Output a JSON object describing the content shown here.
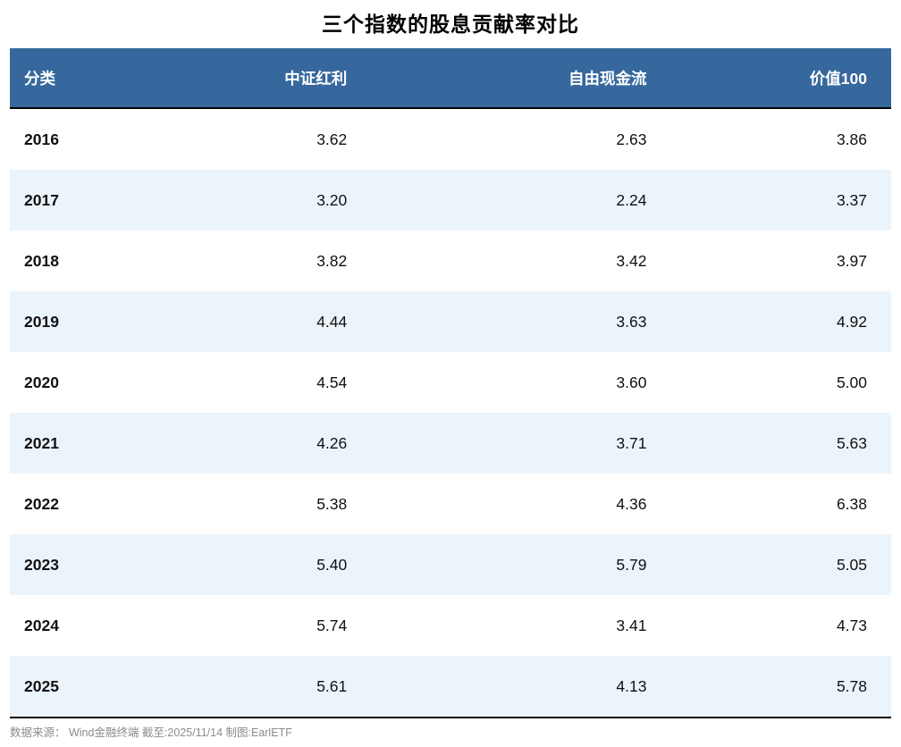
{
  "title": "三个指数的股息贡献率对比",
  "table": {
    "columns": [
      "分类",
      "中证红利",
      "自由现金流",
      "价值100"
    ],
    "rows": [
      {
        "year": "2016",
        "values": [
          "3.62",
          "2.63",
          "3.86"
        ]
      },
      {
        "year": "2017",
        "values": [
          "3.20",
          "2.24",
          "3.37"
        ]
      },
      {
        "year": "2018",
        "values": [
          "3.82",
          "3.42",
          "3.97"
        ]
      },
      {
        "year": "2019",
        "values": [
          "4.44",
          "3.63",
          "4.92"
        ]
      },
      {
        "year": "2020",
        "values": [
          "4.54",
          "3.60",
          "5.00"
        ]
      },
      {
        "year": "2021",
        "values": [
          "4.26",
          "3.71",
          "5.63"
        ]
      },
      {
        "year": "2022",
        "values": [
          "5.38",
          "4.36",
          "6.38"
        ]
      },
      {
        "year": "2023",
        "values": [
          "5.40",
          "5.79",
          "5.05"
        ]
      },
      {
        "year": "2024",
        "values": [
          "5.74",
          "3.41",
          "4.73"
        ]
      },
      {
        "year": "2025",
        "values": [
          "5.61",
          "4.13",
          "5.78"
        ]
      }
    ]
  },
  "footer": {
    "source": "数据来源：  Wind金融终端 截至:2025/11/14 制图:EarlETF"
  },
  "colors": {
    "header_bg": "#36689D",
    "header_text": "#FFFFFF",
    "row_alt_bg": "#ECF4FB",
    "row_bg": "#FFFFFF",
    "rule": "#000000",
    "footer_text": "#8C8C8C"
  },
  "chart_data": {
    "type": "table",
    "title": "三个指数的股息贡献率对比",
    "categories": [
      "2016",
      "2017",
      "2018",
      "2019",
      "2020",
      "2021",
      "2022",
      "2023",
      "2024",
      "2025"
    ],
    "series": [
      {
        "name": "中证红利",
        "values": [
          3.62,
          3.2,
          3.82,
          4.44,
          4.54,
          4.26,
          5.38,
          5.4,
          5.74,
          5.61
        ]
      },
      {
        "name": "自由现金流",
        "values": [
          2.63,
          2.24,
          3.42,
          3.63,
          3.6,
          3.71,
          4.36,
          5.79,
          3.41,
          4.13
        ]
      },
      {
        "name": "价值100",
        "values": [
          3.86,
          3.37,
          3.97,
          4.92,
          5.0,
          5.63,
          6.38,
          5.05,
          4.73,
          5.78
        ]
      }
    ],
    "row_label_column": "分类",
    "legend_position": "none",
    "grid": false
  }
}
